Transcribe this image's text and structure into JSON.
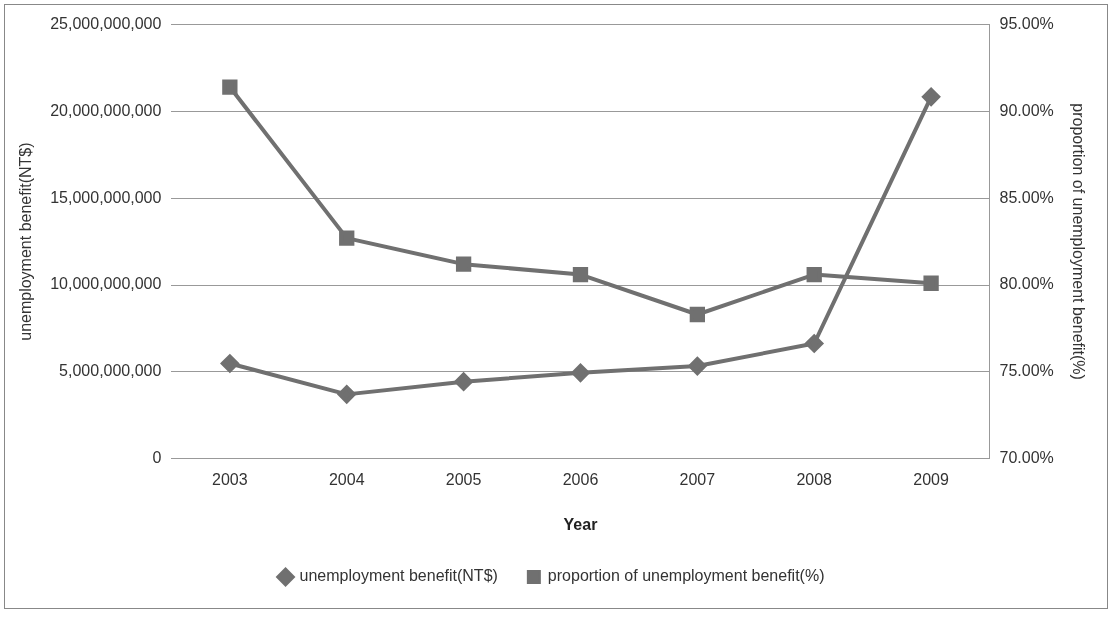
{
  "chart_data": {
    "type": "line",
    "xlabel": "Year",
    "ylabel": "unemployment benefit(NT$)",
    "y2label": "proportion of unemployment benefit(%)",
    "categories": [
      "2003",
      "2004",
      "2005",
      "2006",
      "2007",
      "2008",
      "2009"
    ],
    "series": [
      {
        "name": "unemployment benefit(NT$)",
        "color": "#707070",
        "marker": "diamond",
        "values": [
          5480000000,
          3700000000,
          4430000000,
          4940000000,
          5330000000,
          6630000000,
          20840000000
        ]
      },
      {
        "name": "proportion of unemployment benefit(%)",
        "color": "#707070",
        "marker": "square",
        "axis": "y2",
        "values": [
          91.4,
          82.7,
          81.2,
          80.6,
          78.3,
          80.6,
          80.1
        ]
      }
    ],
    "ylim": [
      0,
      25000000000
    ],
    "yticks": [
      {
        "value": 0,
        "label": "0"
      },
      {
        "value": 5000000000,
        "label": "5,000,000,000"
      },
      {
        "value": 10000000000,
        "label": "10,000,000,000"
      },
      {
        "value": 15000000000,
        "label": "15,000,000,000"
      },
      {
        "value": 20000000000,
        "label": "20,000,000,000"
      },
      {
        "value": 25000000000,
        "label": "25,000,000,000"
      }
    ],
    "y2lim": [
      70,
      95
    ],
    "y2ticks": [
      {
        "value": 70,
        "label": "70.00%"
      },
      {
        "value": 75,
        "label": "75.00%"
      },
      {
        "value": 80,
        "label": "80.00%"
      },
      {
        "value": 85,
        "label": "85.00%"
      },
      {
        "value": 90,
        "label": "90.00%"
      },
      {
        "value": 95,
        "label": "95.00%"
      }
    ],
    "grid": "y",
    "legend": "bottom",
    "line_style": "solid"
  }
}
